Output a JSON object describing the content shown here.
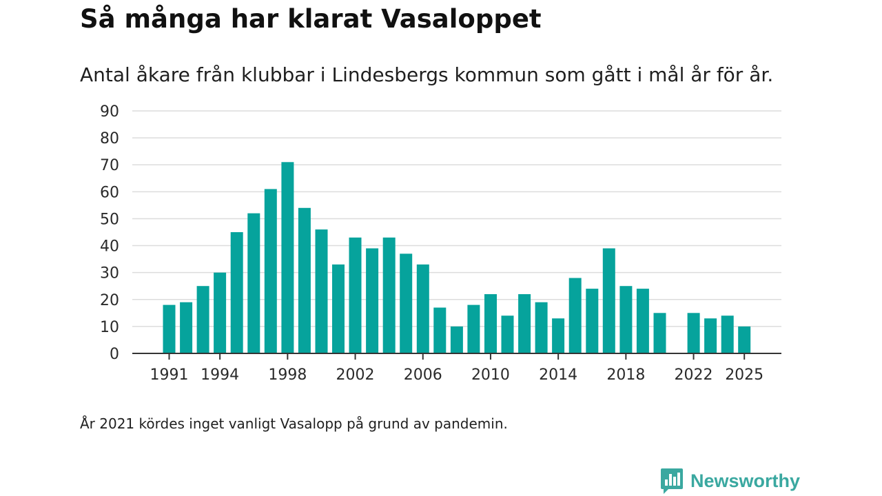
{
  "title": "Så många har klarat Vasaloppet",
  "subtitle": "Antal åkare från klubbar i Lindesbergs kommun som gått i mål år för år.",
  "footnote": "År 2021 kördes inget vanligt Vasalopp på grund av pandemin.",
  "brand": {
    "name": "Newsworthy",
    "icon": "newsworthy-logo-icon",
    "color": "#3aa8a0"
  },
  "colors": {
    "bar": "#06a39c",
    "grid": "#dcdcdc",
    "axis": "#333333"
  },
  "chart_data": {
    "type": "bar",
    "title": "Så många har klarat Vasaloppet",
    "xlabel": "",
    "ylabel": "",
    "ylim": [
      0,
      90
    ],
    "yticks": [
      0,
      10,
      20,
      30,
      40,
      50,
      60,
      70,
      80,
      90
    ],
    "xtick_labels": [
      "1991",
      "1994",
      "1998",
      "2002",
      "2006",
      "2010",
      "2014",
      "2018",
      "2022",
      "2025"
    ],
    "categories": [
      1991,
      1992,
      1993,
      1994,
      1995,
      1996,
      1997,
      1998,
      1999,
      2000,
      2001,
      2002,
      2003,
      2004,
      2005,
      2006,
      2007,
      2008,
      2009,
      2010,
      2011,
      2012,
      2013,
      2014,
      2015,
      2016,
      2017,
      2018,
      2019,
      2020,
      2021,
      2022,
      2023,
      2024,
      2025
    ],
    "values": [
      18,
      19,
      25,
      30,
      45,
      52,
      61,
      71,
      54,
      46,
      33,
      43,
      39,
      43,
      37,
      33,
      17,
      10,
      18,
      22,
      14,
      22,
      19,
      13,
      28,
      24,
      39,
      25,
      24,
      15,
      null,
      15,
      13,
      14,
      10
    ],
    "grid": true,
    "legend": "none"
  }
}
